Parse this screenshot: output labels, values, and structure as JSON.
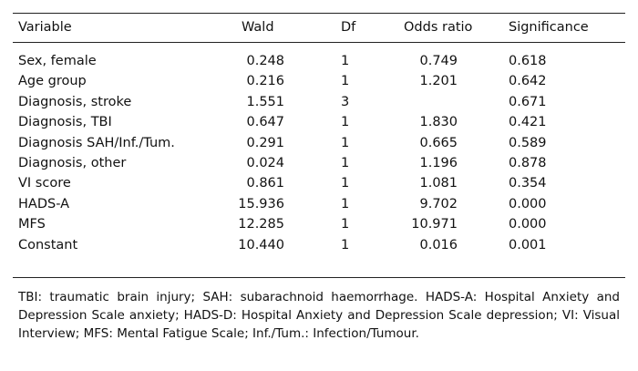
{
  "table": {
    "header": [
      "Variable",
      "Wald",
      "Df",
      "Odds ratio",
      "Significance"
    ],
    "rows": [
      [
        "Sex, female",
        "0.248",
        "1",
        "0.749",
        "0.618"
      ],
      [
        "Age group",
        "0.216",
        "1",
        "1.201",
        "0.642"
      ],
      [
        "Diagnosis, stroke",
        "1.551",
        "3",
        null,
        "0.671"
      ],
      [
        "Diagnosis, TBI",
        "0.647",
        "1",
        "1.830",
        "0.421"
      ],
      [
        "Diagnosis SAH/Inf./Tum.",
        "0.291",
        "1",
        "0.665",
        "0.589"
      ],
      [
        "Diagnosis, other",
        "0.024",
        "1",
        "1.196",
        "0.878"
      ],
      [
        "VI score",
        "0.861",
        "1",
        "1.081",
        "0.354"
      ],
      [
        "HADS-A",
        "15.936",
        "1",
        "9.702",
        "0.000"
      ],
      [
        "MFS",
        "12.285",
        "1",
        "10.971",
        "0.000"
      ],
      [
        "Constant",
        "10.440",
        "1",
        "0.016",
        "0.001"
      ]
    ]
  },
  "footnote": "TBI: traumatic brain injury; SAH: subarachnoid haemorrhage. HADS-A: Hospital Anxiety and Depression Scale anxiety; HADS-D: Hospital Anxiety and Depression Scale depression; VI: Visual Interview; MFS: Mental Fatigue Scale; Inf./Tum.: Infection/Tumour."
}
